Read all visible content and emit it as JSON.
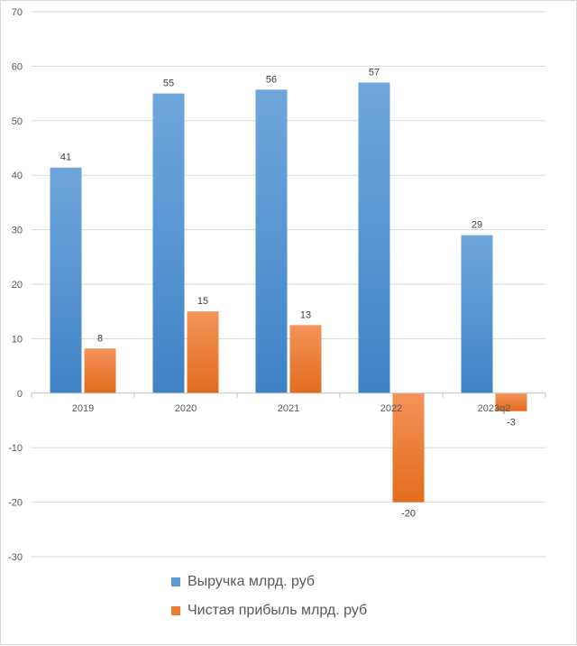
{
  "chart_data": {
    "type": "bar",
    "categories": [
      "2019",
      "2020",
      "2021",
      "2022",
      "2023q2"
    ],
    "series": [
      {
        "name": "Выручка млрд. руб",
        "values": [
          41.4,
          55,
          55.7,
          57,
          29
        ],
        "labels": [
          "41",
          "55",
          "56",
          "57",
          "29"
        ],
        "color": "#5b9bd5"
      },
      {
        "name": "Чистая прибыль млрд. руб",
        "values": [
          8.2,
          15,
          12.5,
          -20,
          -3.3
        ],
        "labels": [
          "8",
          "15",
          "13",
          "-20",
          "-3"
        ],
        "color": "#ed7d31"
      }
    ],
    "ylim": [
      -30,
      70
    ],
    "yticks": [
      "-30",
      "-20",
      "-10",
      "0",
      "10",
      "20",
      "30",
      "40",
      "50",
      "60",
      "70"
    ],
    "grid": true,
    "legend_position": "bottom"
  }
}
